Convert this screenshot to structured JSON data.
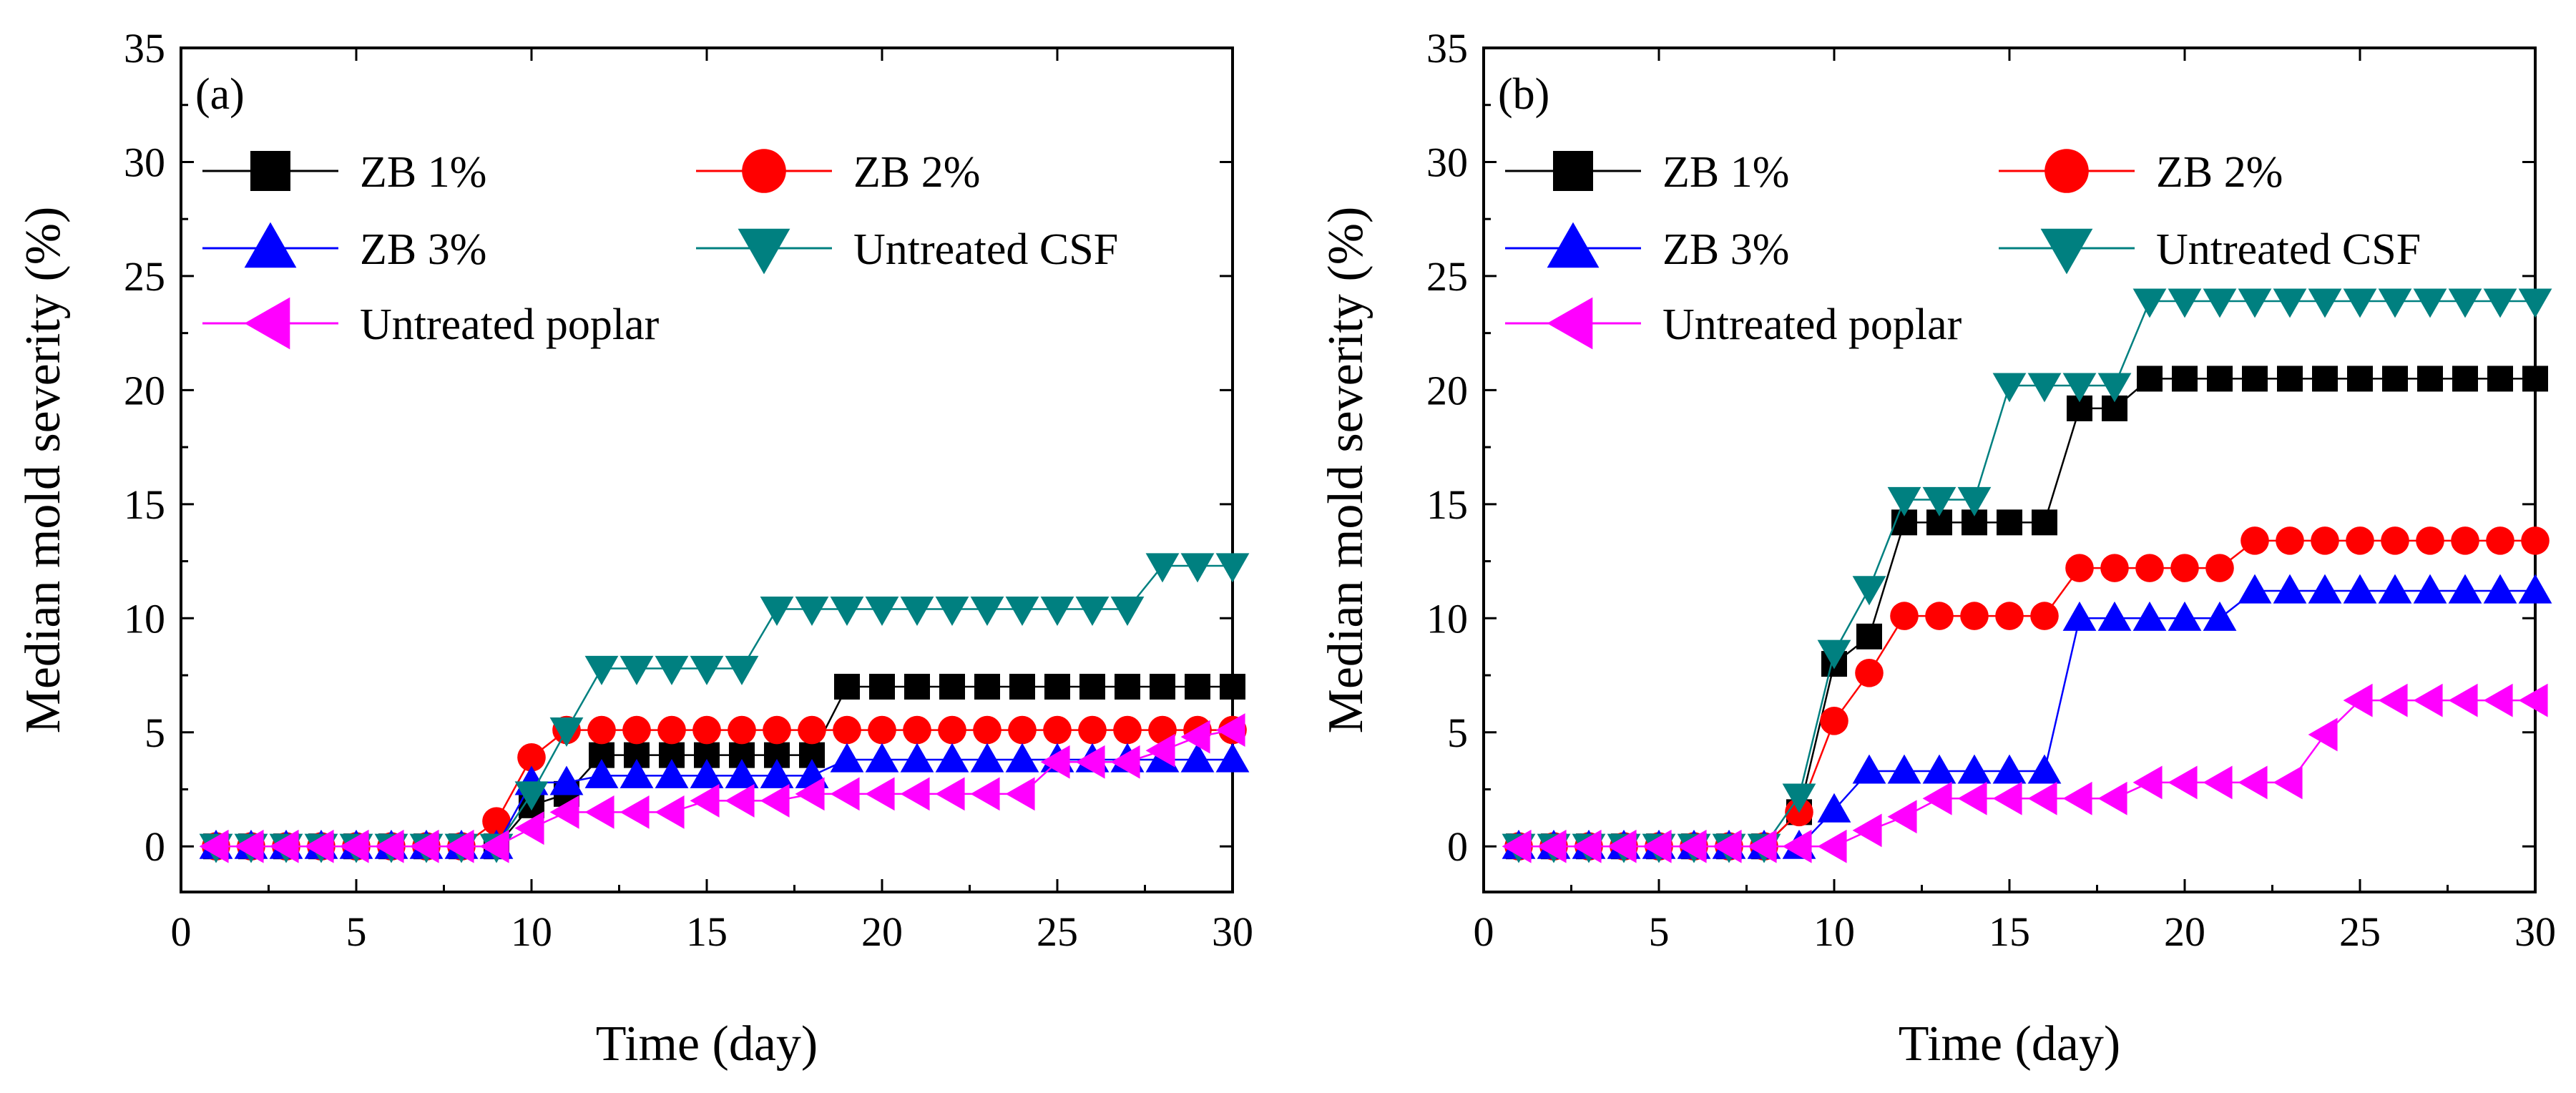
{
  "chart_data": [
    {
      "type": "line",
      "panel_label": "(a)",
      "xlabel": "Time (day)",
      "ylabel": "Median mold severity (%)",
      "xlim": [
        0,
        30
      ],
      "ylim": [
        -2,
        35
      ],
      "xticks": [
        0,
        5,
        10,
        15,
        20,
        25,
        30
      ],
      "yticks": [
        0,
        5,
        10,
        15,
        20,
        25,
        30,
        35
      ],
      "x": [
        1,
        2,
        3,
        4,
        5,
        6,
        7,
        8,
        9,
        10,
        11,
        12,
        13,
        14,
        15,
        16,
        17,
        18,
        19,
        20,
        21,
        22,
        23,
        24,
        25,
        26,
        27,
        28,
        29,
        30
      ],
      "series": [
        {
          "name": "ZB 1%",
          "color": "#000000",
          "marker": "square",
          "values": [
            0,
            0,
            0,
            0,
            0,
            0,
            0,
            0,
            0,
            1.8,
            2.3,
            4,
            4,
            4,
            4,
            4,
            4,
            4,
            7,
            7,
            7,
            7,
            7,
            7,
            7,
            7,
            7,
            7,
            7,
            7
          ]
        },
        {
          "name": "ZB 2%",
          "color": "#ff0000",
          "marker": "circle",
          "values": [
            0,
            0,
            0,
            0,
            0,
            0,
            0,
            0,
            1.1,
            3.9,
            5.1,
            5.1,
            5.1,
            5.1,
            5.1,
            5.1,
            5.1,
            5.1,
            5.1,
            5.1,
            5.1,
            5.1,
            5.1,
            5.1,
            5.1,
            5.1,
            5.1,
            5.1,
            5.1,
            5.1
          ]
        },
        {
          "name": "ZB 3%",
          "color": "#0000ff",
          "marker": "triangle-up",
          "values": [
            0,
            0,
            0,
            0,
            0,
            0,
            0,
            0,
            0,
            2.8,
            2.8,
            3.1,
            3.1,
            3.1,
            3.1,
            3.1,
            3.1,
            3.1,
            3.8,
            3.8,
            3.8,
            3.8,
            3.8,
            3.8,
            3.8,
            3.8,
            3.8,
            3.8,
            3.8,
            3.8
          ]
        },
        {
          "name": "Untreated CSF",
          "color": "#008080",
          "marker": "triangle-down",
          "values": [
            0,
            0,
            0,
            0,
            0,
            0,
            0,
            0,
            0,
            2.3,
            5.1,
            7.8,
            7.8,
            7.8,
            7.8,
            7.8,
            10.4,
            10.4,
            10.4,
            10.4,
            10.4,
            10.4,
            10.4,
            10.4,
            10.4,
            10.4,
            10.4,
            12.3,
            12.3,
            12.3
          ]
        },
        {
          "name": "Untreated poplar",
          "color": "#ff00ff",
          "marker": "triangle-left",
          "values": [
            0,
            0,
            0,
            0,
            0,
            0,
            0,
            0,
            0,
            0.8,
            1.5,
            1.5,
            1.5,
            1.5,
            2,
            2,
            2,
            2.3,
            2.3,
            2.3,
            2.3,
            2.3,
            2.3,
            2.3,
            3.7,
            3.7,
            3.7,
            4.2,
            4.8,
            5.1
          ]
        }
      ],
      "legend": "top-left"
    },
    {
      "type": "line",
      "panel_label": "(b)",
      "xlabel": "Time (day)",
      "ylabel": "Median mold severity (%)",
      "xlim": [
        0,
        30
      ],
      "ylim": [
        -2,
        35
      ],
      "xticks": [
        0,
        5,
        10,
        15,
        20,
        25,
        30
      ],
      "yticks": [
        0,
        5,
        10,
        15,
        20,
        25,
        30,
        35
      ],
      "x": [
        1,
        2,
        3,
        4,
        5,
        6,
        7,
        8,
        9,
        10,
        11,
        12,
        13,
        14,
        15,
        16,
        17,
        18,
        19,
        20,
        21,
        22,
        23,
        24,
        25,
        26,
        27,
        28,
        29,
        30
      ],
      "series": [
        {
          "name": "ZB 1%",
          "color": "#000000",
          "marker": "square",
          "values": [
            0,
            0,
            0,
            0,
            0,
            0,
            0,
            0,
            1.5,
            8,
            9.2,
            14.2,
            14.2,
            14.2,
            14.2,
            14.2,
            19.2,
            19.2,
            20.5,
            20.5,
            20.5,
            20.5,
            20.5,
            20.5,
            20.5,
            20.5,
            20.5,
            20.5,
            20.5,
            20.5
          ]
        },
        {
          "name": "ZB 2%",
          "color": "#ff0000",
          "marker": "circle",
          "values": [
            0,
            0,
            0,
            0,
            0,
            0,
            0,
            0,
            1.5,
            5.5,
            7.6,
            10.1,
            10.1,
            10.1,
            10.1,
            10.1,
            12.2,
            12.2,
            12.2,
            12.2,
            12.2,
            13.4,
            13.4,
            13.4,
            13.4,
            13.4,
            13.4,
            13.4,
            13.4,
            13.4
          ]
        },
        {
          "name": "ZB 3%",
          "color": "#0000ff",
          "marker": "triangle-up",
          "values": [
            0,
            0,
            0,
            0,
            0,
            0,
            0,
            0,
            0,
            1.6,
            3.3,
            3.3,
            3.3,
            3.3,
            3.3,
            3.3,
            10,
            10,
            10,
            10,
            10,
            11.2,
            11.2,
            11.2,
            11.2,
            11.2,
            11.2,
            11.2,
            11.2,
            11.2
          ]
        },
        {
          "name": "Untreated CSF",
          "color": "#008080",
          "marker": "triangle-down",
          "values": [
            0,
            0,
            0,
            0,
            0,
            0,
            0,
            0,
            2.2,
            8.5,
            11.3,
            15.2,
            15.2,
            15.2,
            20.2,
            20.2,
            20.2,
            20.2,
            23.9,
            23.9,
            23.9,
            23.9,
            23.9,
            23.9,
            23.9,
            23.9,
            23.9,
            23.9,
            23.9,
            23.9
          ]
        },
        {
          "name": "Untreated poplar",
          "color": "#ff00ff",
          "marker": "triangle-left",
          "values": [
            0,
            0,
            0,
            0,
            0,
            0,
            0,
            0,
            0,
            0,
            0.7,
            1.3,
            2.1,
            2.1,
            2.1,
            2.1,
            2.1,
            2.1,
            2.8,
            2.8,
            2.8,
            2.8,
            2.8,
            4.9,
            6.4,
            6.4,
            6.4,
            6.4,
            6.4,
            6.4
          ]
        }
      ],
      "legend": "top-left"
    }
  ]
}
